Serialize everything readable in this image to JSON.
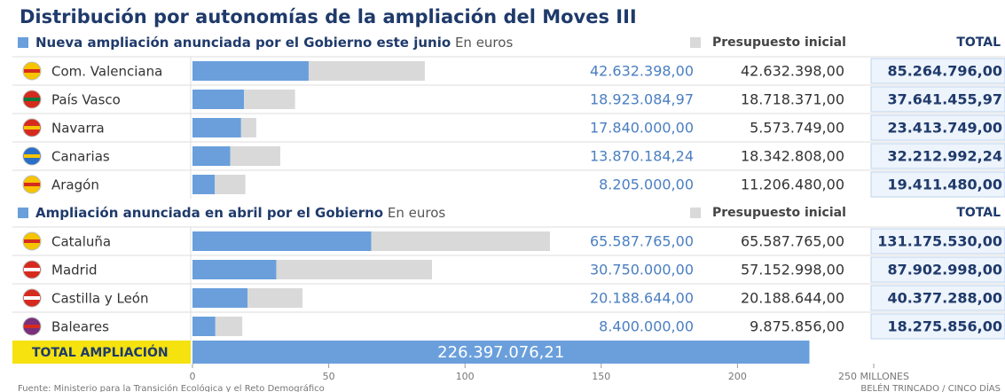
{
  "chart_data": {
    "type": "stacked-bar-table",
    "title": "Distribución por autonomías de la ampliación del Moves III",
    "xlim": [
      0,
      250
    ],
    "xticks": [
      0,
      50,
      100,
      150,
      200,
      {
        "value": 250,
        "label": "250 MILLONES"
      }
    ],
    "colors": {
      "value": "#6a9fdc",
      "budget": "#d9d9d9",
      "total": "#f5e20f"
    },
    "groups": [
      {
        "header": "Nueva ampliación anunciada por el Gobierno este junio",
        "unit": "En euros",
        "budget_header": "Presupuesto inicial",
        "total_header": "TOTAL",
        "categories": [
          "Com. Valenciana",
          "País Vasco",
          "Navarra",
          "Canarias",
          "Aragón"
        ],
        "values": [
          42.632398,
          18.92308497,
          17.84,
          13.87018424,
          8.205
        ],
        "value_labels": [
          "42.632.398,00",
          "18.923.084,97",
          "17.840.000,00",
          "13.870.184,24",
          "8.205.000,00"
        ],
        "budget": [
          42.632398,
          18.718371,
          5.573749,
          18.342808,
          11.20648
        ],
        "budget_labels": [
          "42.632.398,00",
          "18.718.371,00",
          "5.573.749,00",
          "18.342.808,00",
          "11.206.480,00"
        ],
        "totals": [
          "85.264.796,00",
          "37.641.455,97",
          "23.413.749,00",
          "32.212.992,24",
          "19.411.480,00"
        ]
      },
      {
        "header": "Ampliación anunciada en abril por el Gobierno",
        "unit": "En euros",
        "budget_header": "Presupuesto inicial",
        "total_header": "TOTAL",
        "categories": [
          "Cataluña",
          "Madrid",
          "Castilla y León",
          "Baleares"
        ],
        "values": [
          65.587765,
          30.75,
          20.188644,
          8.4
        ],
        "value_labels": [
          "65.587.765,00",
          "30.750.000,00",
          "20.188.644,00",
          "8.400.000,00"
        ],
        "budget": [
          65.587765,
          57.152998,
          20.188644,
          9.875856
        ],
        "budget_labels": [
          "65.587.765,00",
          "57.152.998,00",
          "20.188.644,00",
          "9.875.856,00"
        ],
        "totals": [
          "131.175.530,00",
          "87.902.998,00",
          "40.377.288,00",
          "18.275.856,00"
        ]
      }
    ],
    "total": {
      "label": "TOTAL AMPLIACIÓN",
      "value": 226.39707621,
      "value_label": "226.397.076,21"
    },
    "source": "Fuente: Ministerio para la Transición Ecológica y el Reto Demográfico",
    "credit": "BELÉN TRINCADO / CINCO DÍAS"
  }
}
